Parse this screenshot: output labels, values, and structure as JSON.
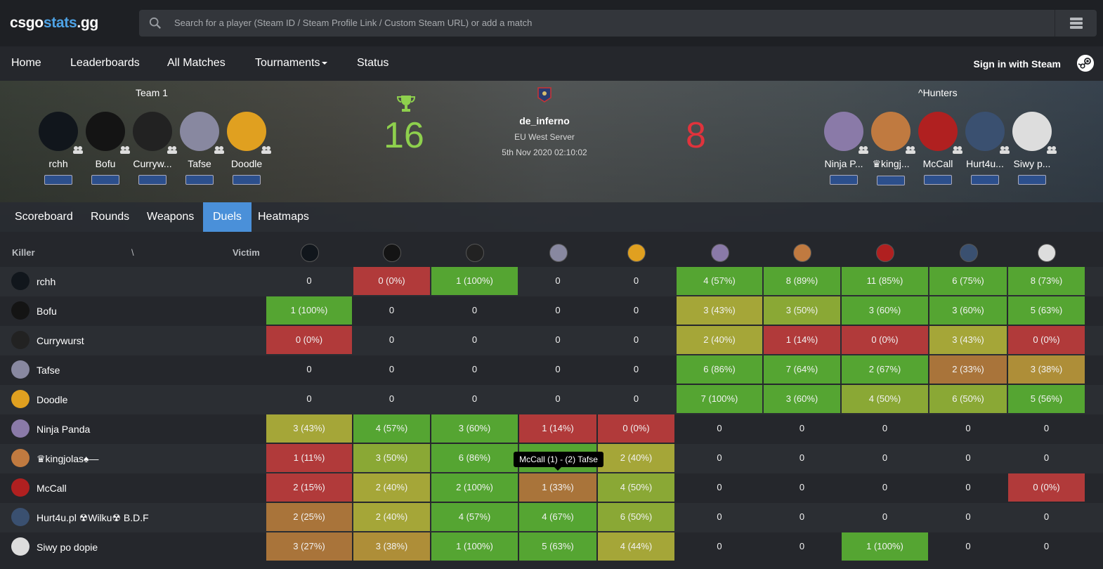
{
  "logo": {
    "part1": "csgo",
    "part2": "stats",
    "part3": ".gg"
  },
  "search": {
    "placeholder": "Search for a player (Steam ID / Steam Profile Link / Custom Steam URL) or add a match"
  },
  "nav": {
    "home": "Home",
    "leaderboards": "Leaderboards",
    "all_matches": "All Matches",
    "tournaments": "Tournaments",
    "status": "Status",
    "signin": "Sign in with Steam"
  },
  "match": {
    "team1_name": "Team 1",
    "team2_name": "^Hunters",
    "score1": "16",
    "score2": "8",
    "map": "de_inferno",
    "server": "EU West Server",
    "date": "5th Nov 2020 02:10:02",
    "team1_players": [
      {
        "name": "rchh",
        "color": "#11161c"
      },
      {
        "name": "Bofu",
        "color": "#141414"
      },
      {
        "name": "Curryw...",
        "color": "#222"
      },
      {
        "name": "Tafse",
        "color": "#8888a0"
      },
      {
        "name": "Doodle",
        "color": "#e0a020"
      }
    ],
    "team2_players": [
      {
        "name": "Ninja P...",
        "color": "#8a7aa8"
      },
      {
        "name": "♛kingj...",
        "color": "#c07a40"
      },
      {
        "name": "McCall",
        "color": "#b02020"
      },
      {
        "name": "Hurt4u...",
        "color": "#3a5070"
      },
      {
        "name": "Siwy p...",
        "color": "#dddddd"
      }
    ]
  },
  "tabs": [
    "Scoreboard",
    "Rounds",
    "Weapons",
    "Duels",
    "Heatmaps"
  ],
  "active_tab": "Duels",
  "duels": {
    "killer_label": "Killer",
    "slash_label": "\\",
    "victim_label": "Victim",
    "rows": [
      {
        "name": "rchh",
        "color": "#11161c",
        "cells": [
          "0",
          "0 (0%)",
          "1 (100%)",
          "0",
          "0",
          "4 (57%)",
          "8 (89%)",
          "11 (85%)",
          "6 (75%)",
          "8 (73%)"
        ],
        "tones": [
          "n",
          "r",
          "g",
          "n",
          "n",
          "g",
          "g",
          "g",
          "g",
          "g"
        ]
      },
      {
        "name": "Bofu",
        "color": "#141414",
        "cells": [
          "1 (100%)",
          "0",
          "0",
          "0",
          "0",
          "3 (43%)",
          "3 (50%)",
          "3 (60%)",
          "3 (60%)",
          "5 (63%)"
        ],
        "tones": [
          "g",
          "n",
          "n",
          "n",
          "n",
          "y",
          "yg",
          "g",
          "g",
          "g"
        ]
      },
      {
        "name": "Currywurst",
        "color": "#222",
        "cells": [
          "0 (0%)",
          "0",
          "0",
          "0",
          "0",
          "2 (40%)",
          "1 (14%)",
          "0 (0%)",
          "3 (43%)",
          "0 (0%)"
        ],
        "tones": [
          "r",
          "n",
          "n",
          "n",
          "n",
          "y",
          "r",
          "r",
          "y",
          "r"
        ]
      },
      {
        "name": "Tafse",
        "color": "#8888a0",
        "cells": [
          "0",
          "0",
          "0",
          "0",
          "0",
          "6 (86%)",
          "7 (64%)",
          "2 (67%)",
          "2 (33%)",
          "3 (38%)"
        ],
        "tones": [
          "n",
          "n",
          "n",
          "n",
          "n",
          "g",
          "g",
          "g",
          "o",
          "ol"
        ]
      },
      {
        "name": "Doodle",
        "color": "#e0a020",
        "cells": [
          "0",
          "0",
          "0",
          "0",
          "0",
          "7 (100%)",
          "3 (60%)",
          "4 (50%)",
          "6 (50%)",
          "5 (56%)"
        ],
        "tones": [
          "n",
          "n",
          "n",
          "n",
          "n",
          "g",
          "g",
          "yg",
          "yg",
          "g"
        ]
      },
      {
        "name": "Ninja Panda",
        "color": "#8a7aa8",
        "cells": [
          "3 (43%)",
          "4 (57%)",
          "3 (60%)",
          "1 (14%)",
          "0 (0%)",
          "0",
          "0",
          "0",
          "0",
          "0"
        ],
        "tones": [
          "y",
          "g",
          "g",
          "r",
          "r",
          "n",
          "n",
          "n",
          "n",
          "n"
        ]
      },
      {
        "name": "♛kingjolas♠—",
        "color": "#c07a40",
        "cells": [
          "1 (11%)",
          "3 (50%)",
          "6 (86%)",
          "",
          "2 (40%)",
          "0",
          "0",
          "0",
          "0",
          "0"
        ],
        "tones": [
          "r",
          "yg",
          "g",
          "g",
          "y",
          "n",
          "n",
          "n",
          "n",
          "n"
        ]
      },
      {
        "name": "McCall",
        "color": "#b02020",
        "cells": [
          "2 (15%)",
          "2 (40%)",
          "2 (100%)",
          "1 (33%)",
          "4 (50%)",
          "0",
          "0",
          "0",
          "0",
          "0 (0%)"
        ],
        "tones": [
          "r",
          "y",
          "g",
          "o",
          "yg",
          "n",
          "n",
          "n",
          "n",
          "r"
        ]
      },
      {
        "name": "Hurt4u.pl ☢Wilku☢ B.D.F",
        "color": "#3a5070",
        "cells": [
          "2 (25%)",
          "2 (40%)",
          "4 (57%)",
          "4 (67%)",
          "6 (50%)",
          "0",
          "0",
          "0",
          "0",
          "0"
        ],
        "tones": [
          "o",
          "y",
          "g",
          "g",
          "yg",
          "n",
          "n",
          "n",
          "n",
          "n"
        ]
      },
      {
        "name": "Siwy po dopie",
        "color": "#dddddd",
        "cells": [
          "3 (27%)",
          "3 (38%)",
          "1 (100%)",
          "5 (63%)",
          "4 (44%)",
          "0",
          "0",
          "1 (100%)",
          "0",
          "0"
        ],
        "tones": [
          "o",
          "ol",
          "g",
          "g",
          "y",
          "n",
          "n",
          "g",
          "n",
          "n"
        ]
      }
    ],
    "tooltip": "McCall (1) - (2) Tafse"
  },
  "tone_colors": {
    "g": "#55a532",
    "yg": "#8aa835",
    "y": "#a5a638",
    "ol": "#ae8e38",
    "o": "#a9743a",
    "r": "#b13a3a",
    "n": "transparent"
  }
}
